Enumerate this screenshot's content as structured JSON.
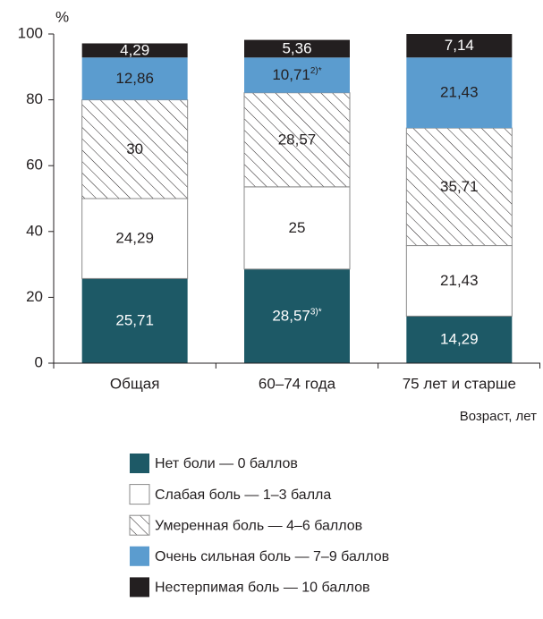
{
  "chart_data": {
    "type": "stacked_bar",
    "y_label": "%",
    "x_label": "Возраст, лет",
    "categories": [
      "Общая",
      "60–74 года",
      "75 лет и старше"
    ],
    "series": [
      {
        "name": "Нет боли — 0 баллов",
        "color": "#1d5966",
        "values": [
          25.71,
          28.57,
          14.29
        ],
        "value_labels": [
          "25,71",
          "28,57",
          "14,29"
        ],
        "value_label_notes": [
          null,
          "3)*",
          null
        ]
      },
      {
        "name": "Слабая боль — 1–3 балла",
        "color": "#ffffff",
        "values": [
          24.29,
          25,
          21.43
        ],
        "value_labels": [
          "24,29",
          "25",
          "21,43"
        ]
      },
      {
        "name": "Умеренная боль — 4–6 баллов",
        "color": "#ffffff",
        "pattern": "hatch",
        "values": [
          30,
          28.57,
          35.71
        ],
        "value_labels": [
          "30",
          "28,57",
          "35,71"
        ]
      },
      {
        "name": "Очень сильная боль — 7–9 баллов",
        "color": "#5b9ccf",
        "values": [
          12.86,
          10.71,
          21.43
        ],
        "value_labels": [
          "12,86",
          "10,71",
          "21,43"
        ],
        "value_label_notes": [
          null,
          "2)*",
          null
        ]
      },
      {
        "name": "Нестерпимая боль — 10 баллов",
        "color": "#231f20",
        "values": [
          4.29,
          5.36,
          7.14
        ],
        "value_labels": [
          "4,29",
          "5,36",
          "7,14"
        ]
      }
    ],
    "ylim": [
      0,
      100
    ],
    "yticks": [
      0,
      20,
      40,
      60,
      80,
      100
    ]
  }
}
